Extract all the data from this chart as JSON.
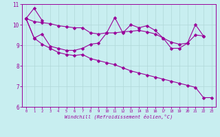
{
  "xlabel": "Windchill (Refroidissement éolien,°C)",
  "x": [
    0,
    1,
    2,
    3,
    4,
    5,
    6,
    7,
    8,
    9,
    10,
    11,
    12,
    13,
    14,
    15,
    16,
    17,
    18,
    19,
    20,
    21,
    22,
    23
  ],
  "line1": [
    10.3,
    10.8,
    10.2,
    null,
    null,
    null,
    null,
    null,
    null,
    null,
    null,
    null,
    null,
    null,
    null,
    null,
    null,
    null,
    null,
    null,
    null,
    null,
    null,
    null
  ],
  "line2": [
    10.3,
    10.15,
    10.1,
    10.05,
    9.95,
    9.9,
    9.85,
    9.85,
    9.6,
    9.55,
    9.6,
    9.6,
    9.65,
    9.68,
    9.72,
    9.65,
    9.55,
    9.35,
    9.15,
    9.05,
    9.1,
    9.5,
    9.45,
    null
  ],
  "line3": [
    10.3,
    9.35,
    9.55,
    8.95,
    8.85,
    8.75,
    8.75,
    8.85,
    9.05,
    9.1,
    9.6,
    10.35,
    9.6,
    10.0,
    9.85,
    9.95,
    9.72,
    9.35,
    8.85,
    8.85,
    9.1,
    10.0,
    9.45,
    null
  ],
  "line4": [
    10.3,
    9.35,
    9.05,
    8.85,
    8.65,
    8.55,
    8.5,
    8.55,
    8.35,
    8.25,
    8.15,
    8.05,
    7.9,
    7.75,
    7.65,
    7.55,
    7.45,
    7.35,
    7.25,
    7.15,
    7.05,
    6.95,
    6.45,
    6.45
  ],
  "ylim": [
    6,
    11
  ],
  "xlim_min": -0.5,
  "xlim_max": 23.5,
  "yticks": [
    6,
    7,
    8,
    9,
    10,
    11
  ],
  "xticks": [
    0,
    1,
    2,
    3,
    4,
    5,
    6,
    7,
    8,
    9,
    10,
    11,
    12,
    13,
    14,
    15,
    16,
    17,
    18,
    19,
    20,
    21,
    22,
    23
  ],
  "line_color": "#990099",
  "bg_color": "#c8eef0",
  "grid_color": "#b0d8d8",
  "markersize": 2.5,
  "linewidth": 0.8,
  "fig_width": 3.2,
  "fig_height": 2.0,
  "dpi": 100
}
